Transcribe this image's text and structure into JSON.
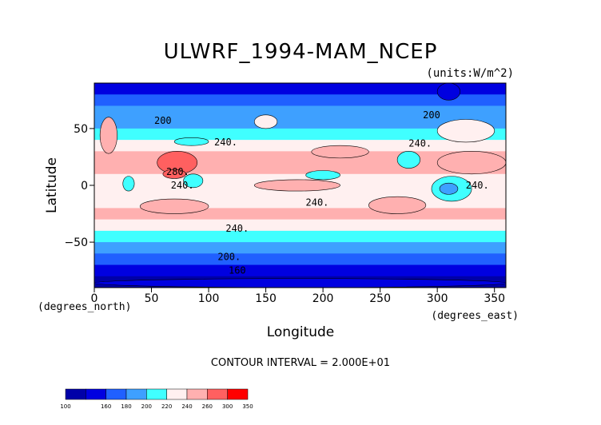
{
  "chart_data": {
    "type": "heatmap",
    "title": "ULWRF_1994-MAM_NCEP",
    "units_label": "(units:W/m^2)",
    "xlabel": "Longitude",
    "ylabel": "Latitude",
    "x_unit_label": "(degrees_east)",
    "y_unit_label": "(degrees_north)",
    "xlim": [
      0,
      360
    ],
    "ylim": [
      -90,
      90
    ],
    "x_ticks": [
      0,
      50,
      100,
      150,
      200,
      250,
      300,
      350
    ],
    "y_ticks": [
      -50,
      0,
      50
    ],
    "contour_interval_text": "CONTOUR INTERVAL = 2.000E+01",
    "colorbar": {
      "levels": [
        100,
        160,
        180,
        200,
        220,
        240,
        260,
        300,
        350
      ],
      "colors": [
        "#0000a8",
        "#0000e0",
        "#2060ff",
        "#3ea0ff",
        "#40ffff",
        "#fff0f0",
        "#ffb0b0",
        "#ff6060",
        "#ff0000"
      ]
    },
    "contour_labels": [
      {
        "text": "200",
        "lon": 60,
        "lat": 57
      },
      {
        "text": "200",
        "lon": 295,
        "lat": 62
      },
      {
        "text": "240.",
        "lon": 115,
        "lat": 38
      },
      {
        "text": "240.",
        "lon": 285,
        "lat": 37
      },
      {
        "text": "280.",
        "lon": 73,
        "lat": 12
      },
      {
        "text": "240.",
        "lon": 77,
        "lat": 0
      },
      {
        "text": "240.",
        "lon": 335,
        "lat": 0
      },
      {
        "text": "240.",
        "lon": 195,
        "lat": -15
      },
      {
        "text": "240.",
        "lon": 125,
        "lat": -38
      },
      {
        "text": "200.",
        "lon": 118,
        "lat": -63
      },
      {
        "text": "160",
        "lon": 125,
        "lat": -75
      }
    ],
    "zonal_profile": [
      {
        "lat": 90,
        "value": 165
      },
      {
        "lat": 80,
        "value": 185
      },
      {
        "lat": 70,
        "value": 195
      },
      {
        "lat": 60,
        "value": 205
      },
      {
        "lat": 50,
        "value": 220
      },
      {
        "lat": 40,
        "value": 245
      },
      {
        "lat": 30,
        "value": 260
      },
      {
        "lat": 20,
        "value": 270
      },
      {
        "lat": 10,
        "value": 250
      },
      {
        "lat": 0,
        "value": 230
      },
      {
        "lat": -10,
        "value": 250
      },
      {
        "lat": -20,
        "value": 265
      },
      {
        "lat": -30,
        "value": 255
      },
      {
        "lat": -40,
        "value": 235
      },
      {
        "lat": -50,
        "value": 210
      },
      {
        "lat": -60,
        "value": 195
      },
      {
        "lat": -70,
        "value": 175
      },
      {
        "lat": -80,
        "value": 150
      },
      {
        "lat": -90,
        "value": 140
      }
    ]
  }
}
